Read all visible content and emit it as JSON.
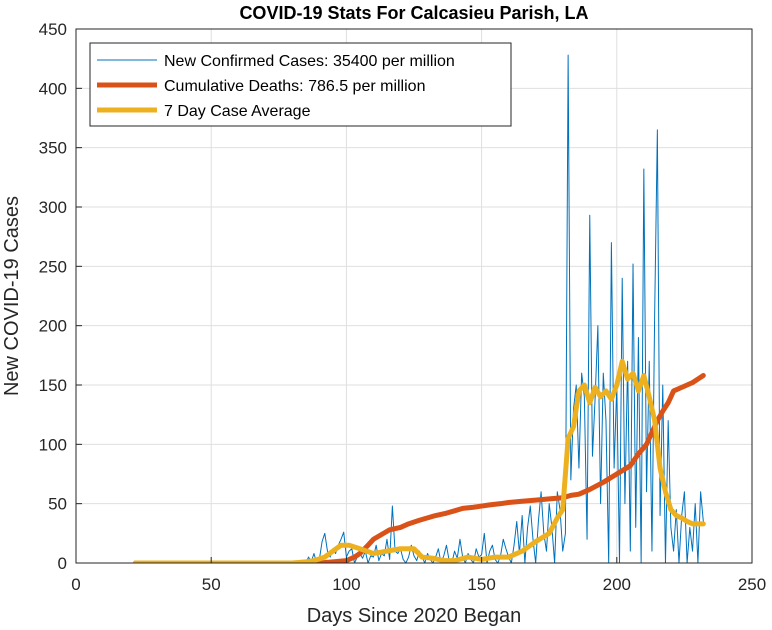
{
  "chart_data": {
    "type": "line",
    "title": "COVID-19 Stats For Calcasieu Parish, LA",
    "xlabel": "Days Since 2020 Began",
    "ylabel": "New COVID-19 Cases",
    "xlim": [
      0,
      250
    ],
    "ylim": [
      0,
      450
    ],
    "xticks": [
      0,
      50,
      100,
      150,
      200,
      250
    ],
    "yticks": [
      0,
      50,
      100,
      150,
      200,
      250,
      300,
      350,
      400,
      450
    ],
    "grid": true,
    "legend_position": "top-left",
    "series": [
      {
        "name": "New Confirmed Cases: 35400 per million",
        "color": "#0072BD",
        "style": "thin",
        "x": [
          22,
          40,
          60,
          80,
          84,
          85,
          86,
          87,
          88,
          89,
          90,
          91,
          92,
          93,
          94,
          95,
          96,
          97,
          98,
          99,
          100,
          101,
          102,
          103,
          104,
          105,
          106,
          107,
          108,
          109,
          110,
          111,
          112,
          113,
          114,
          115,
          116,
          117,
          118,
          119,
          120,
          121,
          122,
          123,
          124,
          125,
          126,
          127,
          128,
          129,
          130,
          131,
          132,
          133,
          134,
          135,
          136,
          137,
          138,
          139,
          140,
          141,
          142,
          143,
          144,
          145,
          146,
          147,
          148,
          149,
          150,
          151,
          152,
          153,
          154,
          155,
          156,
          157,
          158,
          159,
          160,
          161,
          162,
          163,
          164,
          165,
          166,
          167,
          168,
          169,
          170,
          171,
          172,
          173,
          174,
          175,
          176,
          177,
          178,
          179,
          180,
          181,
          182,
          183,
          184,
          185,
          186,
          187,
          188,
          189,
          190,
          191,
          192,
          193,
          194,
          195,
          196,
          197,
          198,
          199,
          200,
          201,
          202,
          203,
          204,
          205,
          206,
          207,
          208,
          209,
          210,
          211,
          212,
          213,
          214,
          215,
          216,
          217,
          218,
          219,
          220,
          221,
          222,
          223,
          224,
          225,
          226,
          227,
          228,
          229,
          230,
          231,
          232
        ],
        "values": [
          0,
          0,
          0,
          0,
          2,
          0,
          5,
          1,
          8,
          0,
          3,
          18,
          25,
          10,
          5,
          12,
          8,
          15,
          20,
          26,
          5,
          10,
          12,
          0,
          5,
          8,
          4,
          10,
          0,
          6,
          5,
          15,
          2,
          8,
          6,
          20,
          3,
          48,
          10,
          8,
          12,
          3,
          0,
          5,
          15,
          6,
          2,
          10,
          5,
          0,
          8,
          3,
          0,
          5,
          12,
          0,
          6,
          15,
          2,
          0,
          10,
          4,
          20,
          5,
          0,
          8,
          3,
          0,
          12,
          5,
          7,
          25,
          0,
          10,
          15,
          3,
          0,
          6,
          20,
          12,
          5,
          0,
          15,
          35,
          8,
          40,
          0,
          30,
          48,
          20,
          0,
          35,
          60,
          25,
          10,
          50,
          30,
          0,
          60,
          45,
          10,
          25,
          428,
          70,
          130,
          150,
          80,
          160,
          140,
          20,
          293,
          90,
          140,
          200,
          50,
          160,
          120,
          0,
          270,
          80,
          150,
          0,
          240,
          50,
          170,
          10,
          252,
          30,
          190,
          0,
          332,
          60,
          170,
          10,
          210,
          365,
          40,
          150,
          0,
          120,
          30,
          10,
          45,
          0,
          40,
          60,
          0,
          30,
          10,
          50,
          0,
          60,
          35
        ]
      },
      {
        "name": "Cumulative Deaths: 786.5 per million",
        "color": "#D95319",
        "style": "thick",
        "x": [
          22,
          85,
          90,
          95,
          100,
          103,
          105,
          108,
          110,
          113,
          116,
          120,
          123,
          127,
          130,
          133,
          137,
          140,
          143,
          147,
          150,
          153,
          157,
          160,
          165,
          170,
          175,
          180,
          183,
          186,
          190,
          195,
          200,
          205,
          208,
          211,
          213,
          215,
          217,
          219,
          221,
          224,
          226,
          228,
          230,
          232
        ],
        "values": [
          0,
          0,
          0,
          1,
          2,
          5,
          8,
          15,
          20,
          24,
          28,
          30,
          33,
          36,
          38,
          40,
          42,
          44,
          46,
          47,
          48,
          49,
          50,
          51,
          52,
          53,
          54,
          55,
          57,
          58,
          62,
          68,
          75,
          82,
          92,
          100,
          110,
          120,
          128,
          135,
          145,
          148,
          150,
          152,
          155,
          158
        ]
      },
      {
        "name": "7 Day Case Average",
        "color": "#EDB120",
        "style": "thick",
        "x": [
          22,
          40,
          60,
          80,
          85,
          88,
          92,
          95,
          98,
          101,
          105,
          110,
          115,
          120,
          125,
          128,
          132,
          136,
          140,
          145,
          150,
          155,
          160,
          165,
          170,
          175,
          178,
          180,
          182,
          184,
          186,
          188,
          190,
          192,
          194,
          196,
          198,
          200,
          202,
          204,
          206,
          208,
          210,
          212,
          214,
          216,
          218,
          220,
          222,
          224,
          226,
          228,
          230,
          232
        ],
        "values": [
          0,
          0,
          0,
          0,
          1,
          2,
          5,
          10,
          15,
          15,
          12,
          8,
          10,
          12,
          12,
          5,
          4,
          2,
          2,
          5,
          3,
          5,
          5,
          10,
          18,
          25,
          38,
          45,
          105,
          115,
          145,
          150,
          135,
          148,
          140,
          145,
          138,
          150,
          170,
          155,
          160,
          145,
          158,
          140,
          120,
          80,
          60,
          45,
          40,
          38,
          35,
          33,
          33,
          33
        ]
      }
    ]
  }
}
